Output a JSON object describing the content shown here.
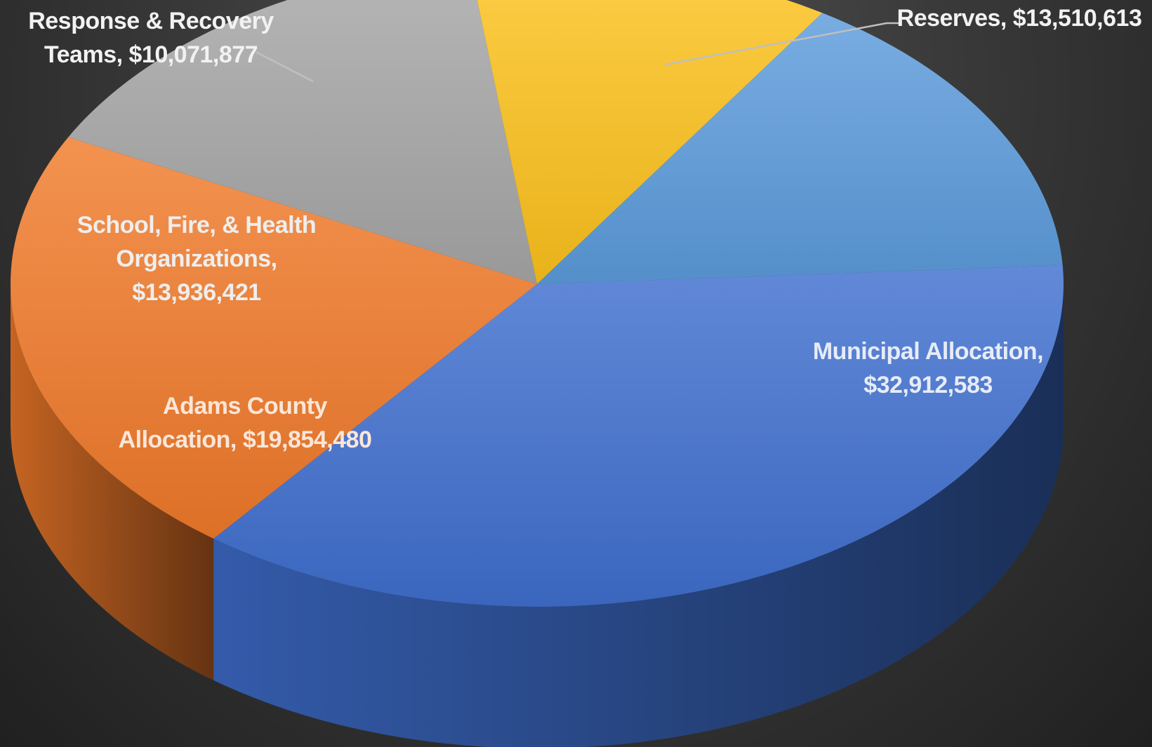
{
  "chart_data": {
    "type": "pie",
    "title": "",
    "three_d": true,
    "slices": [
      {
        "name": "Municipal Allocation",
        "value": 32912583,
        "label_lines": [
          "Municipal Allocation,",
          "$32,912,583"
        ],
        "color": "#3f6fcf",
        "label_color": "#e6ecf7"
      },
      {
        "name": "Adams County Allocation",
        "value": 19854480,
        "label_lines": [
          "Adams County",
          "Allocation, $19,854,480"
        ],
        "color": "#f07a2a",
        "label_color": "#fbe6d8"
      },
      {
        "name": "School, Fire, & Health Organizations",
        "value": 13936421,
        "label_lines": [
          "School, Fire, & Health",
          "Organizations,",
          "$13,936,421"
        ],
        "color": "#a6a6a6",
        "label_color": "#eeeeee"
      },
      {
        "name": "Response & Recovery Teams",
        "value": 10071877,
        "label_lines": [
          "Response & Recovery",
          "Teams, $10,071,877"
        ],
        "color": "#fcc21c",
        "label_color": "#f2f2f2"
      },
      {
        "name": "Reserves",
        "value": 13510613,
        "label_lines": [
          "Reserves, $13,510,613"
        ],
        "color": "#5b9bdc",
        "label_color": "#f2f2f2"
      }
    ]
  }
}
